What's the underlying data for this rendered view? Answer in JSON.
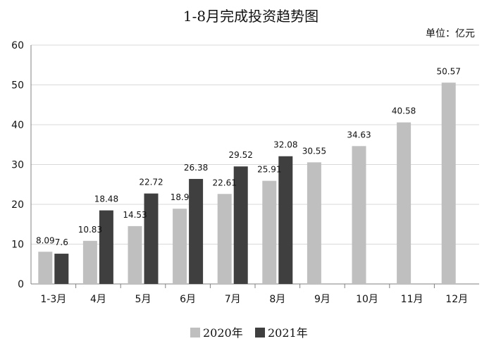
{
  "chart_data": {
    "type": "bar",
    "title": "1-8月完成投资趋势图",
    "unit": "单位：亿元",
    "xlabel": "",
    "ylabel": "",
    "categories": [
      "1-3月",
      "4月",
      "5月",
      "6月",
      "7月",
      "8月",
      "9月",
      "10月",
      "11月",
      "12月"
    ],
    "ylim": [
      0,
      60
    ],
    "yticks": [
      0,
      10,
      20,
      30,
      40,
      50,
      60
    ],
    "grid": true,
    "legend_position": "bottom",
    "series": [
      {
        "name": "2020年",
        "color": "#bfbfbf",
        "values": [
          8.09,
          10.83,
          14.53,
          18.9,
          22.61,
          25.91,
          30.55,
          34.63,
          40.58,
          50.57
        ],
        "labels": [
          "8.09",
          "10.83",
          "14.53",
          "18.9",
          "22.61",
          "25.91",
          "30.55",
          "34.63",
          "40.58",
          "50.57"
        ]
      },
      {
        "name": "2021年",
        "color": "#3f3f3f",
        "values": [
          7.6,
          18.48,
          22.72,
          26.38,
          29.52,
          32.08,
          null,
          null,
          null,
          null
        ],
        "labels": [
          "7.6",
          "18.48",
          "22.72",
          "26.38",
          "29.52",
          "32.08",
          null,
          null,
          null,
          null
        ]
      }
    ]
  }
}
